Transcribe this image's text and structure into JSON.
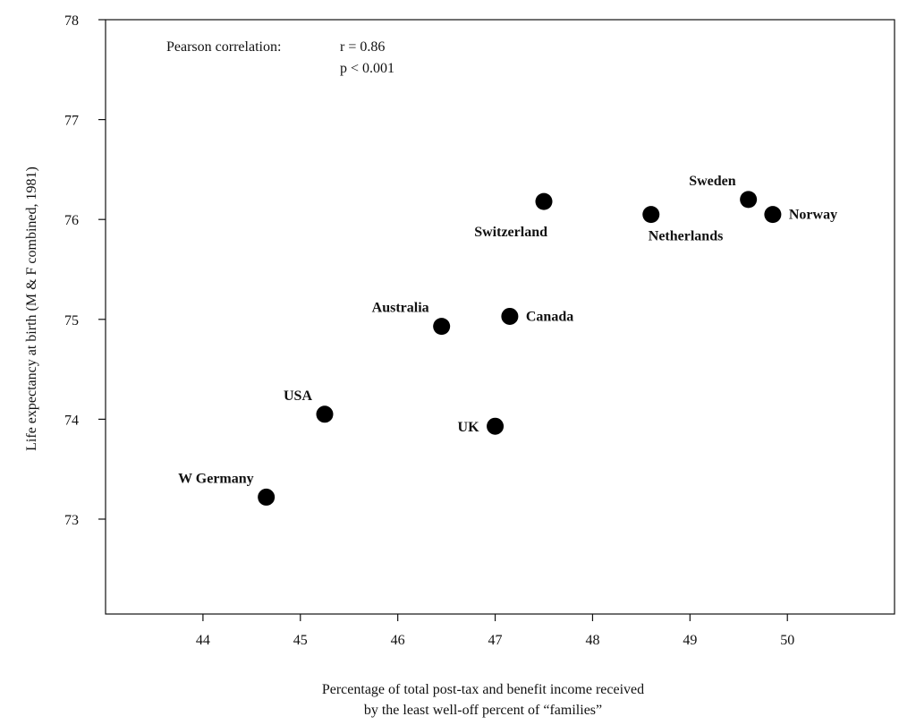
{
  "chart_data": {
    "type": "scatter",
    "xlabel_lines": [
      "Percentage of total post-tax and benefit income received",
      "by the least well-off percent of “families”"
    ],
    "ylabel": "Life expectancy at birth (M & F combined, 1981)",
    "xlim": [
      43,
      51.1
    ],
    "ylim": [
      72.05,
      78
    ],
    "x_ticks": [
      44,
      45,
      46,
      47,
      48,
      49,
      50
    ],
    "y_ticks": [
      73,
      74,
      75,
      76,
      77,
      78
    ],
    "grid": false,
    "annotation": {
      "label": "Pearson correlation:",
      "r": "r = 0.86",
      "p": "p < 0.001"
    },
    "points": [
      {
        "label": "Sweden",
        "x": 49.6,
        "y": 76.2,
        "label_pos": "above-left"
      },
      {
        "label": "Norway",
        "x": 49.85,
        "y": 76.05,
        "label_pos": "right"
      },
      {
        "label": "Netherlands",
        "x": 48.6,
        "y": 76.05,
        "label_pos": "below-right"
      },
      {
        "label": "Switzerland",
        "x": 47.5,
        "y": 76.18,
        "label_pos": "below-left"
      },
      {
        "label": "Canada",
        "x": 47.15,
        "y": 75.03,
        "label_pos": "right"
      },
      {
        "label": "Australia",
        "x": 46.45,
        "y": 74.93,
        "label_pos": "above-left"
      },
      {
        "label": "USA",
        "x": 45.25,
        "y": 74.05,
        "label_pos": "above-left"
      },
      {
        "label": "UK",
        "x": 47.0,
        "y": 73.93,
        "label_pos": "left"
      },
      {
        "label": "W Germany",
        "x": 44.65,
        "y": 73.22,
        "label_pos": "above-left"
      }
    ]
  }
}
